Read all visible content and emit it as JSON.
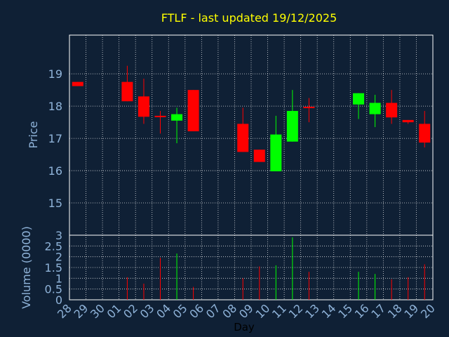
{
  "chart_data": {
    "type": "candlestick",
    "title": "FTLF - last updated 19/12/2025",
    "xlabel": "Day",
    "ylabel_price": "Price",
    "ylabel_volume": "Volume (0000)",
    "x_ticks": [
      "28",
      "29",
      "30",
      "01",
      "02",
      "03",
      "04",
      "05",
      "06",
      "07",
      "08",
      "09",
      "10",
      "11",
      "12",
      "13",
      "14",
      "15",
      "16",
      "17",
      "18",
      "19",
      "20"
    ],
    "price_ticks": [
      15,
      16,
      17,
      18,
      19
    ],
    "price_range": [
      14,
      20.2
    ],
    "volume_ticks": [
      "0",
      "0.5",
      "1",
      "1.5",
      "2",
      "2.5",
      "3"
    ],
    "volume_range": [
      0,
      3
    ],
    "grid": true,
    "up_color": "#00ff00",
    "down_color": "#ff0000",
    "candles": [
      {
        "day": "28",
        "open": 18.75,
        "close": 18.62,
        "high": 18.75,
        "low": 18.62,
        "volume": 0
      },
      {
        "day": "01",
        "open": 18.75,
        "close": 18.15,
        "high": 19.25,
        "low": 18.15,
        "volume": 1.05
      },
      {
        "day": "02",
        "open": 18.3,
        "close": 17.67,
        "high": 18.85,
        "low": 17.45,
        "volume": 0.75
      },
      {
        "day": "03",
        "open": 17.7,
        "close": 17.67,
        "high": 17.85,
        "low": 17.15,
        "volume": 1.95
      },
      {
        "day": "04",
        "open": 17.55,
        "close": 17.75,
        "high": 17.95,
        "low": 16.85,
        "volume": 2.15
      },
      {
        "day": "05",
        "open": 18.5,
        "close": 17.22,
        "high": 18.5,
        "low": 17.22,
        "volume": 0.6
      },
      {
        "day": "08",
        "open": 17.45,
        "close": 16.58,
        "high": 17.95,
        "low": 16.58,
        "volume": 1.0
      },
      {
        "day": "09",
        "open": 16.65,
        "close": 16.27,
        "high": 16.65,
        "low": 16.27,
        "volume": 1.55
      },
      {
        "day": "10",
        "open": 15.98,
        "close": 17.12,
        "high": 17.7,
        "low": 15.98,
        "volume": 1.6
      },
      {
        "day": "11",
        "open": 16.9,
        "close": 17.85,
        "high": 18.5,
        "low": 16.9,
        "volume": 2.9
      },
      {
        "day": "12",
        "open": 17.98,
        "close": 17.95,
        "high": 18.25,
        "low": 17.5,
        "volume": 1.3
      },
      {
        "day": "15",
        "open": 18.05,
        "close": 18.4,
        "high": 18.4,
        "low": 17.6,
        "volume": 1.3
      },
      {
        "day": "16",
        "open": 17.75,
        "close": 18.1,
        "high": 18.35,
        "low": 17.35,
        "volume": 1.2
      },
      {
        "day": "17",
        "open": 18.1,
        "close": 17.65,
        "high": 18.5,
        "low": 17.45,
        "volume": 0.95
      },
      {
        "day": "18",
        "open": 17.57,
        "close": 17.5,
        "high": 17.57,
        "low": 17.45,
        "volume": 1.05
      },
      {
        "day": "19",
        "open": 17.45,
        "close": 16.87,
        "high": 17.85,
        "low": 16.72,
        "volume": 1.65
      }
    ]
  }
}
